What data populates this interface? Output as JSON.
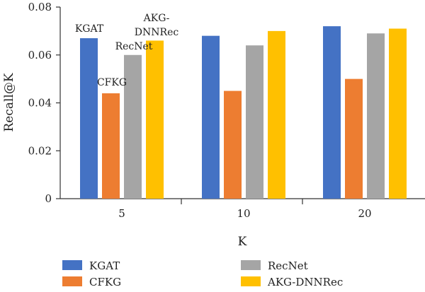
{
  "chart_data": {
    "type": "bar",
    "title": "",
    "xlabel": "K",
    "ylabel": "Recall@K",
    "categories": [
      "5",
      "10",
      "20"
    ],
    "series": [
      {
        "name": "KGAT",
        "color": "#4472C4",
        "values": [
          0.067,
          0.068,
          0.072
        ]
      },
      {
        "name": "CFKG",
        "color": "#ED7D31",
        "values": [
          0.044,
          0.045,
          0.05
        ]
      },
      {
        "name": "RecNet",
        "color": "#A5A5A5",
        "values": [
          0.06,
          0.064,
          0.069
        ]
      },
      {
        "name": "AKG-DNNRec",
        "color": "#FFC000",
        "values": [
          0.066,
          0.07,
          0.071
        ]
      }
    ],
    "ylim": [
      0,
      0.08
    ],
    "yticks": [
      "0",
      "0.02",
      "0.04",
      "0.06",
      "0.08"
    ],
    "annotations": [
      "KGAT",
      "CFKG",
      "RecNet",
      "AKG-",
      "DNNRec"
    ],
    "grid": false,
    "legend_position": "bottom"
  },
  "legend": {
    "items": [
      "KGAT",
      "CFKG",
      "RecNet",
      "AKG-DNNRec"
    ]
  }
}
